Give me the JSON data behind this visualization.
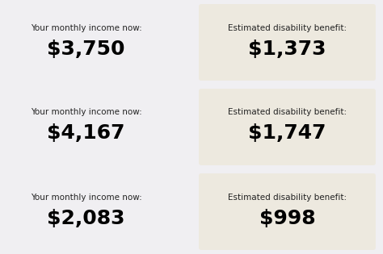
{
  "background_color": "#f0eff2",
  "panel_color": "#ede9df",
  "rows": [
    {
      "left_label": "Your monthly income now:",
      "left_value": "$3,750",
      "right_label": "Estimated disability benefit:",
      "right_value": "$1,373"
    },
    {
      "left_label": "Your monthly income now:",
      "left_value": "$4,167",
      "right_label": "Estimated disability benefit:",
      "right_value": "$1,747"
    },
    {
      "left_label": "Your monthly income now:",
      "left_value": "$2,083",
      "right_label": "Estimated disability benefit:",
      "right_value": "$998"
    }
  ],
  "label_fontsize": 7.5,
  "value_fontsize": 18,
  "label_color": "#222222",
  "value_color": "#000000"
}
